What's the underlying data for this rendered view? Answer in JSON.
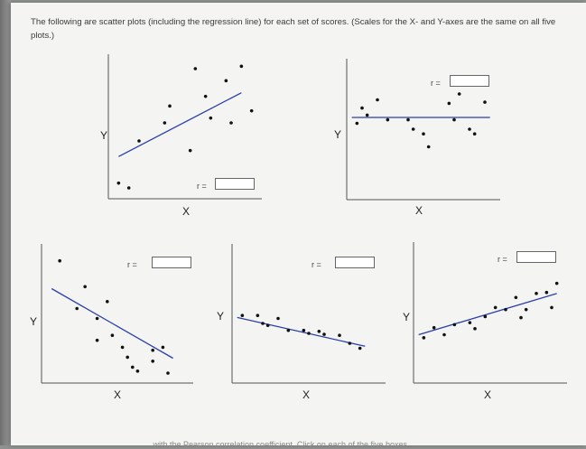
{
  "instructions": "The following are scatter plots (including the regression line) for each set of scores. (Scales for the X- and Y-axes are the same on all five plots.)",
  "footer": "...with the Pearson correlation coefficient. Click on each of the five boxes",
  "axis": {
    "x_label": "X",
    "y_label": "Y"
  },
  "r_label": "r =",
  "colors": {
    "regression_line": "#2b3fa8",
    "points": "#111111",
    "axes": "#555555"
  },
  "chart_data": [
    {
      "type": "scatter",
      "points": [
        [
          1,
          1.3
        ],
        [
          2,
          0.9
        ],
        [
          3,
          4.8
        ],
        [
          5.5,
          6.3
        ],
        [
          8,
          4.0
        ],
        [
          6,
          7.7
        ],
        [
          9.5,
          8.5
        ],
        [
          10,
          6.7
        ],
        [
          8.5,
          10.8
        ],
        [
          12,
          6.3
        ],
        [
          11.5,
          9.8
        ],
        [
          13,
          11
        ],
        [
          14,
          7.3
        ]
      ],
      "regression": [
        [
          1,
          3.5
        ],
        [
          13,
          8.8
        ]
      ],
      "xlim": [
        0,
        15
      ],
      "ylim": [
        0,
        12
      ],
      "r_value": ""
    },
    {
      "type": "scatter",
      "points": [
        [
          1,
          6.5
        ],
        [
          1.5,
          7.8
        ],
        [
          2,
          7.2
        ],
        [
          3,
          8.5
        ],
        [
          4,
          6.8
        ],
        [
          6,
          6.8
        ],
        [
          6.5,
          6.0
        ],
        [
          7.5,
          5.6
        ],
        [
          8,
          4.5
        ],
        [
          10,
          8.2
        ],
        [
          10.5,
          6.8
        ],
        [
          11,
          9
        ],
        [
          12,
          6.0
        ],
        [
          12.5,
          5.6
        ],
        [
          13.5,
          8.3
        ]
      ],
      "regression": [
        [
          0.5,
          7.0
        ],
        [
          14,
          7.0
        ]
      ],
      "xlim": [
        0,
        15
      ],
      "ylim": [
        0,
        12
      ],
      "r_value": ""
    },
    {
      "type": "scatter",
      "points": [
        [
          1.8,
          12.3
        ],
        [
          3.5,
          7.5
        ],
        [
          4.3,
          9.7
        ],
        [
          5.5,
          6.5
        ],
        [
          5.5,
          4.3
        ],
        [
          6.5,
          8.2
        ],
        [
          7,
          4.8
        ],
        [
          8,
          3.6
        ],
        [
          8.5,
          2.6
        ],
        [
          9,
          1.6
        ],
        [
          9.5,
          1.2
        ],
        [
          11,
          3.3
        ],
        [
          11,
          2.2
        ],
        [
          12,
          3.6
        ],
        [
          12.5,
          1.0
        ]
      ],
      "regression": [
        [
          1,
          9.5
        ],
        [
          13,
          2.5
        ]
      ],
      "xlim": [
        0,
        15
      ],
      "ylim": [
        0,
        14
      ],
      "r_value": ""
    },
    {
      "type": "scatter",
      "points": [
        [
          1,
          6.8
        ],
        [
          2.5,
          6.8
        ],
        [
          3,
          6.0
        ],
        [
          3.5,
          5.8
        ],
        [
          4.5,
          6.5
        ],
        [
          5.5,
          5.3
        ],
        [
          7,
          5.3
        ],
        [
          7.5,
          5.0
        ],
        [
          8.5,
          5.2
        ],
        [
          9,
          4.9
        ],
        [
          10.5,
          4.8
        ],
        [
          11.5,
          4.0
        ],
        [
          12.5,
          3.5
        ]
      ],
      "regression": [
        [
          0.5,
          6.6
        ],
        [
          13,
          3.7
        ]
      ],
      "xlim": [
        0,
        15
      ],
      "ylim": [
        0,
        14
      ],
      "r_value": ""
    },
    {
      "type": "scatter",
      "points": [
        [
          1,
          4.5
        ],
        [
          2,
          5.5
        ],
        [
          3,
          4.8
        ],
        [
          4,
          5.8
        ],
        [
          5.5,
          6.0
        ],
        [
          6,
          5.4
        ],
        [
          7,
          6.6
        ],
        [
          8,
          7.5
        ],
        [
          9,
          7.3
        ],
        [
          10,
          8.5
        ],
        [
          10.5,
          6.5
        ],
        [
          11,
          7.3
        ],
        [
          12,
          8.9
        ],
        [
          13,
          9.0
        ],
        [
          13.5,
          7.5
        ],
        [
          14,
          9.9
        ]
      ],
      "regression": [
        [
          0.5,
          4.8
        ],
        [
          14,
          8.9
        ]
      ],
      "xlim": [
        0,
        15
      ],
      "ylim": [
        0,
        14
      ],
      "r_value": ""
    }
  ]
}
